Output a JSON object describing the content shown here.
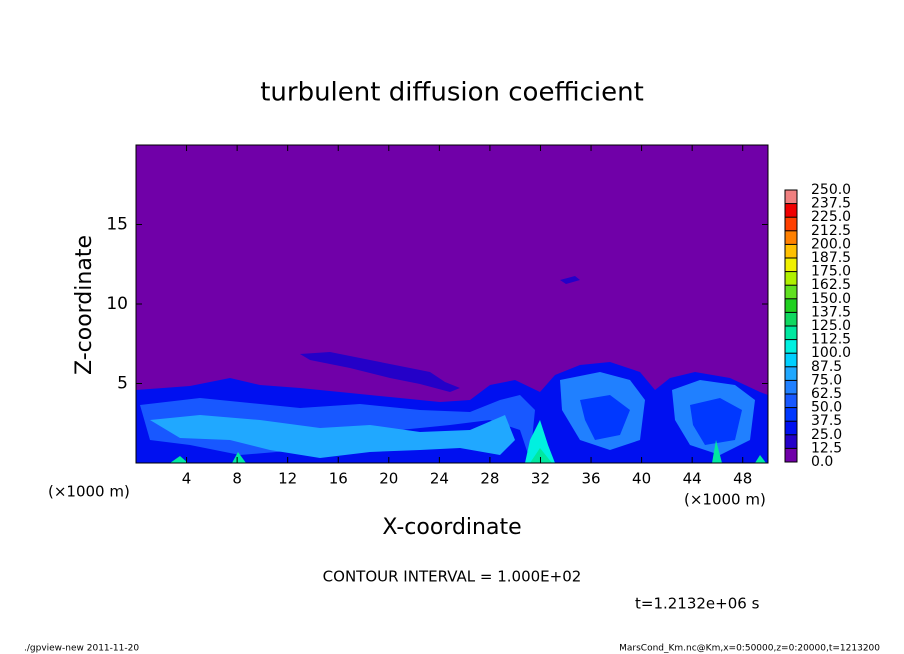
{
  "chart_data": {
    "type": "contour",
    "title": "turbulent diffusion coefficient",
    "xlabel": "X-coordinate",
    "ylabel": "Z-coordinate",
    "xunit_left": "(×1000 m)",
    "xunit_right": "(×1000 m)",
    "xlim": [
      0,
      50
    ],
    "ylim": [
      0,
      20
    ],
    "xticks": [
      4,
      8,
      12,
      16,
      20,
      24,
      28,
      32,
      36,
      40,
      44,
      48
    ],
    "yticks": [
      5,
      10,
      15
    ],
    "levels": [
      {
        "value": 0,
        "label": "0.0"
      },
      12.5,
      {
        "value": 25,
        "label": "25.0"
      },
      37.5,
      {
        "value": 50,
        "label": "50.0"
      },
      62.5,
      {
        "value": 75,
        "label": "75.0"
      },
      87.5,
      {
        "value": 100,
        "label": "100.0"
      },
      112.5,
      {
        "value": 125,
        "label": "125.0"
      },
      137.5,
      {
        "value": 150,
        "label": "150.0"
      },
      162.5,
      {
        "value": 175,
        "label": "175.0"
      },
      187.5,
      {
        "value": 200,
        "label": "200.0"
      },
      212.5,
      {
        "value": 225,
        "label": "225.0"
      },
      237.5,
      {
        "value": 250,
        "label": "250.0"
      }
    ],
    "colors": [
      "#7000a8",
      "#2400c8",
      "#0010f0",
      "#0038ff",
      "#1858ff",
      "#2080ff",
      "#20a8ff",
      "#00d0ff",
      "#00f0e0",
      "#00e8a0",
      "#10d860",
      "#20d020",
      "#60e020",
      "#b0f000",
      "#f0f000",
      "#ffc000",
      "#ff8000",
      "#ff4000",
      "#f00000",
      "#f08080"
    ],
    "contour_interval": "CONTOUR INTERVAL = 1.000E+02",
    "time_label": "t=1.2132e+06 s",
    "footer_left": "./gpview-new   2011-11-20",
    "footer_right": "MarsCond_Km.nc@Km,x=0:50000,z=0:20000,t=1213200"
  }
}
